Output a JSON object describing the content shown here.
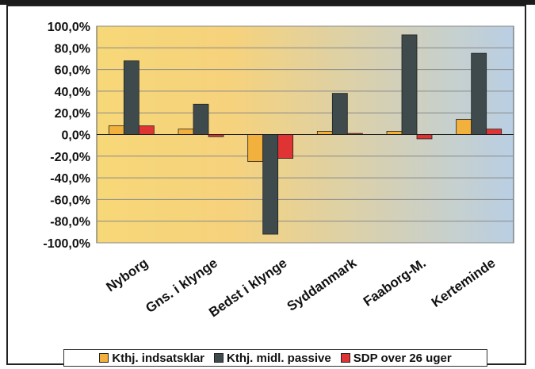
{
  "chart_data": {
    "type": "bar",
    "title": "",
    "xlabel": "",
    "ylabel": "",
    "categories": [
      "Nyborg",
      "Gns. i klynge",
      "Bedst i klynge",
      "Syddanmark",
      "Faaborg-M.",
      "Kerteminde"
    ],
    "series": [
      {
        "name": "Kthj. indsatsklar",
        "color": "#f2b13c",
        "values": [
          8,
          5,
          -25,
          3,
          3,
          14
        ]
      },
      {
        "name": "Kthj. midl. passive",
        "color": "#3f4a4c",
        "values": [
          68,
          28,
          -92,
          38,
          92,
          75
        ]
      },
      {
        "name": "SDP over 26 uger",
        "color": "#e03333",
        "values": [
          8,
          -2,
          -22,
          1,
          -4,
          5
        ]
      }
    ],
    "ylim": [
      -100,
      100
    ],
    "yticks": [
      "100,0%",
      "80,0%",
      "60,0%",
      "40,0%",
      "20,0%",
      "0,0%",
      "-20,0%",
      "-40,0%",
      "-60,0%",
      "-80,0%",
      "-100,0%"
    ],
    "grid": true,
    "legend_position": "bottom",
    "background_gradient": [
      "#f7d878",
      "#b9cfe4"
    ]
  }
}
